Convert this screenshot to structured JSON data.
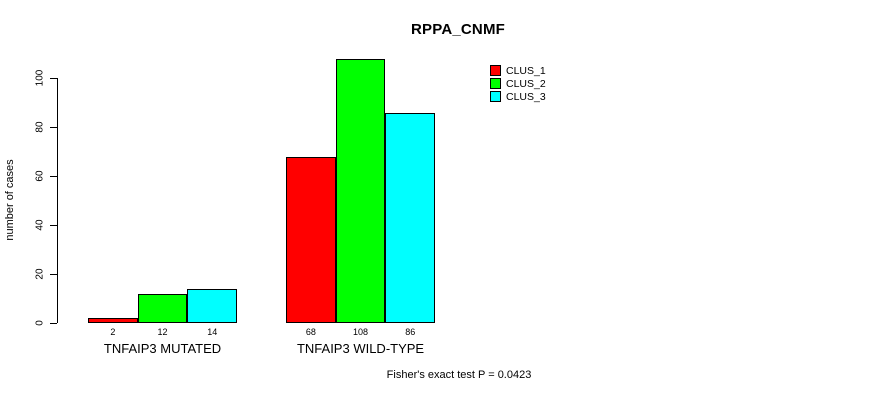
{
  "title": "RPPA_CNMF",
  "footer_note": "Fisher's exact test P = 0.0423",
  "chart_data": {
    "type": "bar",
    "title": "RPPA_CNMF",
    "xlabel": "",
    "ylabel": "number of cases",
    "categories": [
      "TNFAIP3 MUTATED",
      "TNFAIP3 WILD-TYPE"
    ],
    "series": [
      {
        "name": "CLUS_1",
        "color": "#ff0000",
        "values": [
          2,
          68
        ]
      },
      {
        "name": "CLUS_2",
        "color": "#00ff00",
        "values": [
          12,
          108
        ]
      },
      {
        "name": "CLUS_3",
        "color": "#00ffff",
        "values": [
          14,
          86
        ]
      }
    ],
    "bar_value_labels": [
      [
        "2",
        "12",
        "14"
      ],
      [
        "68",
        "108",
        "86"
      ]
    ],
    "yticks": [
      0,
      20,
      40,
      60,
      80,
      100
    ],
    "ylim": [
      0,
      110
    ],
    "grid": false,
    "legend_position": "top-right",
    "bar_border_color": "#000000",
    "annotation": "Fisher's exact test P = 0.0423"
  }
}
